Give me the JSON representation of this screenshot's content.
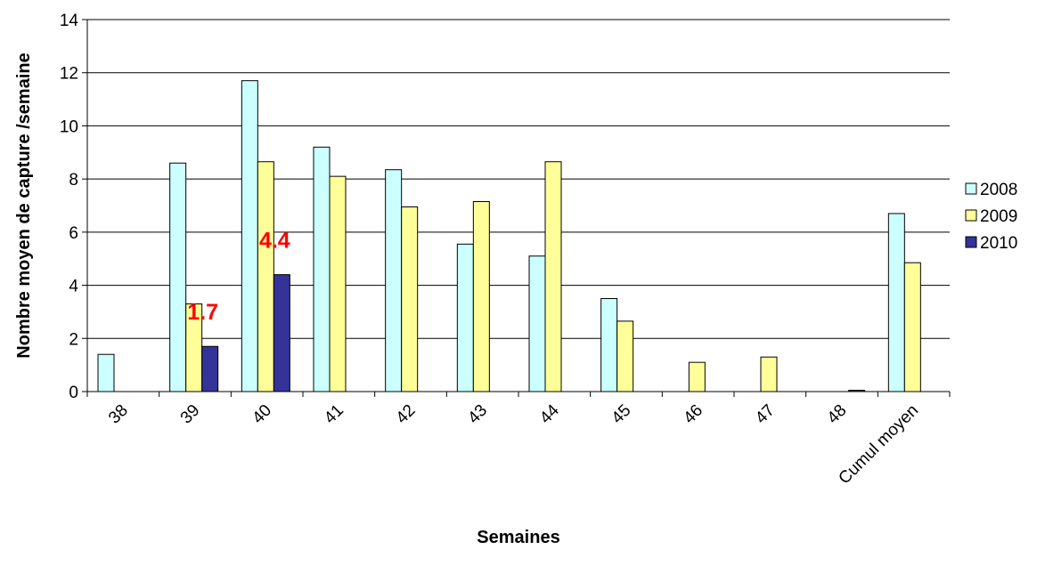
{
  "chart_data": {
    "type": "bar",
    "title": "",
    "xlabel": "Semaines",
    "ylabel": "Nombre moyen de capture /semaine",
    "ylim": [
      0,
      14
    ],
    "yticks": [
      "0",
      "2",
      "4",
      "6",
      "8",
      "10",
      "12",
      "14"
    ],
    "grid": true,
    "legend_position": "right",
    "categories": [
      "38",
      "39",
      "40",
      "41",
      "42",
      "43",
      "44",
      "45",
      "46",
      "47",
      "48",
      "Cumul moyen"
    ],
    "series": [
      {
        "name": "2008",
        "color": "#ccffff",
        "values": [
          1.4,
          8.6,
          11.7,
          9.2,
          8.35,
          5.55,
          5.1,
          3.5,
          null,
          null,
          null,
          6.7
        ]
      },
      {
        "name": "2009",
        "color": "#ffff99",
        "values": [
          null,
          3.3,
          8.65,
          8.1,
          6.95,
          7.15,
          8.65,
          2.65,
          1.1,
          1.3,
          null,
          4.85
        ]
      },
      {
        "name": "2010",
        "color": "#333399",
        "values": [
          null,
          1.7,
          4.4,
          null,
          null,
          null,
          null,
          null,
          null,
          null,
          0.05,
          null
        ]
      }
    ],
    "data_labels": [
      {
        "text": "1.7",
        "category": "39",
        "series": "2010",
        "color": "#ff0000"
      },
      {
        "text": "4.4",
        "category": "40",
        "series": "2010",
        "color": "#ff0000"
      }
    ]
  }
}
